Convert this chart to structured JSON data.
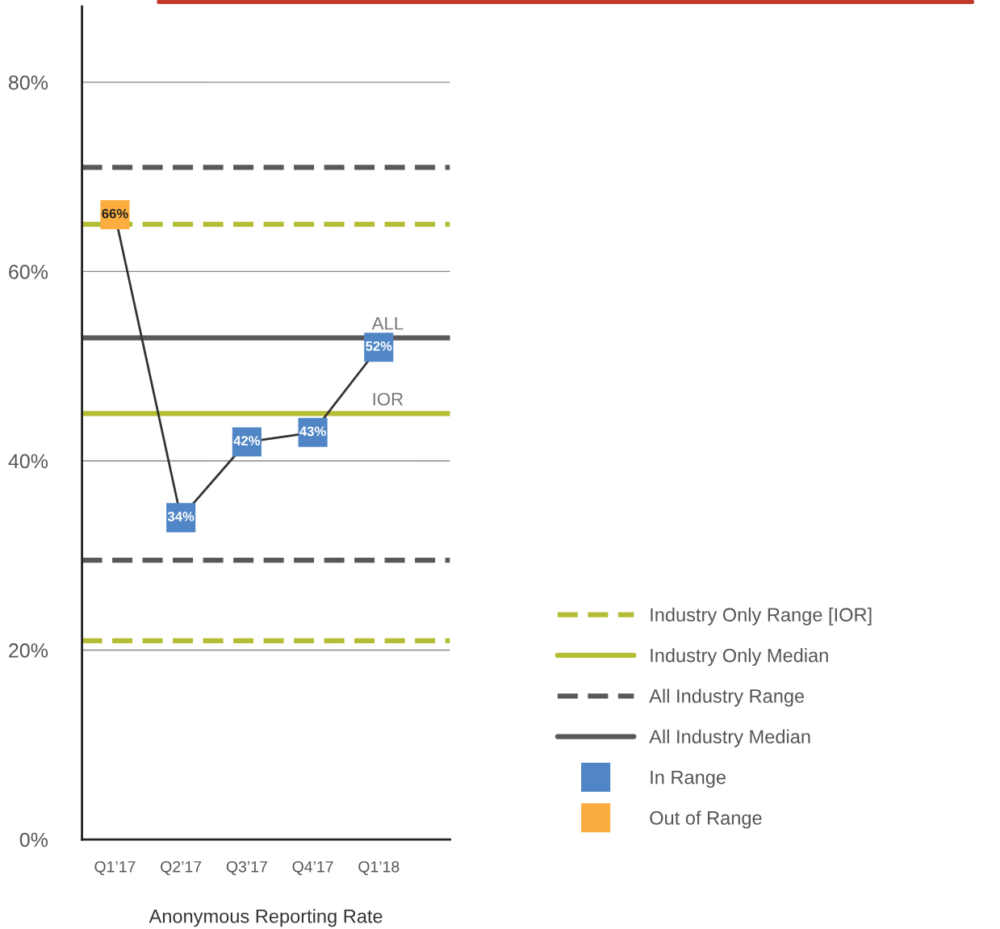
{
  "chart_data": {
    "type": "line",
    "xlabel": "Anonymous Reporting Rate",
    "categories": [
      "Q1’17",
      "Q2’17",
      "Q3’17",
      "Q4’17",
      "Q1’18"
    ],
    "series": [
      {
        "color": "#333333",
        "values": [
          66,
          34,
          42,
          43,
          52
        ],
        "value_labels": [
          "66%",
          "34%",
          "42%",
          "43%",
          "52%"
        ]
      },
      {
        "type": "scatter",
        "name": "In Range",
        "color": "#5186c6",
        "marker": "square",
        "values": [
          null,
          34,
          42,
          43,
          52
        ]
      },
      {
        "type": "scatter",
        "name": "Out of Range",
        "color": "#fbad3f",
        "marker": "square",
        "values": [
          66,
          null,
          null,
          null,
          null
        ]
      }
    ],
    "ylim": [
      0,
      88
    ],
    "yticks": [
      {
        "value": 0,
        "label": "0%"
      },
      {
        "value": 20,
        "label": "20%"
      },
      {
        "value": 40,
        "label": "40%"
      },
      {
        "value": 60,
        "label": "60%"
      },
      {
        "value": 80,
        "label": "80%"
      }
    ],
    "grid": "y",
    "ref_lines": [
      {
        "axis": "y",
        "value": 65,
        "label": "Industry Only Range [IOR]",
        "color": "#b5bd35",
        "line_style": "dashed"
      },
      {
        "axis": "y",
        "value": 21,
        "color": "#b5bd35",
        "line_style": "dashed"
      },
      {
        "axis": "y",
        "value": 45,
        "label": "Industry Only Median",
        "color": "#b5bd35",
        "line_style": "solid"
      },
      {
        "axis": "y",
        "value": 71,
        "label": "All Industry Range",
        "color": "#58585a",
        "line_style": "dashed"
      },
      {
        "axis": "y",
        "value": 29.5,
        "color": "#58585a",
        "line_style": "dashed"
      },
      {
        "axis": "y",
        "value": 53,
        "label": "All Industry Median",
        "color": "#58585a",
        "line_style": "solid"
      }
    ],
    "annotations": [
      {
        "text": "ALL",
        "x": "Q1’18",
        "y": 53
      },
      {
        "text": "IOR",
        "x": "Q1’18",
        "y": 45
      }
    ],
    "legend": "right"
  }
}
